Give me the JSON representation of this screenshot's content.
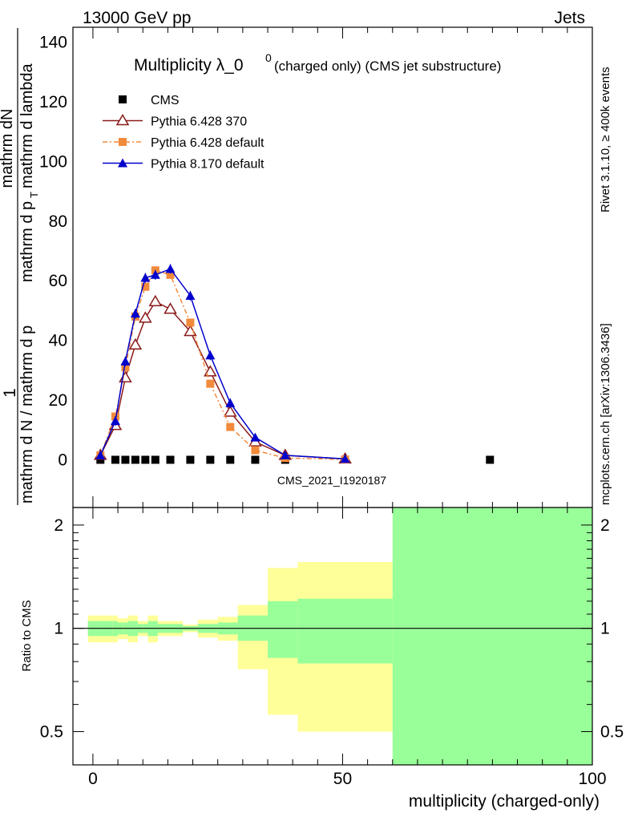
{
  "header": {
    "left": "13000 GeV pp",
    "right": "Jets"
  },
  "side_labels": {
    "rivet": "Rivet 3.1.10, ≥ 400k events",
    "mcplots": "mcplots.cern.ch [arXiv:1306.3436]"
  },
  "chart_data": [
    {
      "type": "line",
      "title": "Multiplicity λ_0",
      "title_sup": "0",
      "title_suffix": "(charged only) (CMS jet substructure)",
      "watermark": "CMS_2021_I1920187",
      "ylabel": {
        "numerator_a": "1",
        "numerator_b": "mathrm dN",
        "denominator_a": "mathrm d N / mathrm d p",
        "denominator_b": "mathrm d p",
        "denominator_c": "mathrm d lambda",
        "denominator_d": "mathrm d",
        "sub_t": "T"
      },
      "xlim": [
        -4,
        100
      ],
      "ylim": [
        -16,
        145
      ],
      "yticks": [
        0,
        20,
        40,
        60,
        80,
        100,
        120,
        140
      ],
      "legend_placement": "top-left",
      "series": [
        {
          "name": "CMS",
          "marker": "square",
          "color": "#000000",
          "x": [
            1.5,
            4.5,
            6.5,
            8.5,
            10.5,
            12.5,
            15.5,
            19.5,
            23.5,
            27.5,
            32.5,
            38.5,
            79.5
          ],
          "y": [
            0,
            0,
            0,
            0,
            0,
            0,
            0,
            0,
            0,
            0,
            0,
            0,
            0
          ]
        },
        {
          "name": "Pythia 6.428 370",
          "marker": "open-triangle",
          "color": "#8b1a1a",
          "x": [
            1.5,
            4.5,
            6.5,
            8.5,
            10.5,
            12.5,
            15.5,
            19.5,
            23.5,
            27.5,
            32.5,
            38.5,
            50.5
          ],
          "y": [
            1.5,
            11.5,
            27.5,
            38.5,
            47.5,
            53,
            50.5,
            43,
            29.5,
            16,
            6,
            1.5,
            0.3
          ]
        },
        {
          "name": "Pythia 6.428 default",
          "marker": "square",
          "color": "#f28a3c",
          "x": [
            1.5,
            4.5,
            6.5,
            8.5,
            10.5,
            12.5,
            15.5,
            19.5,
            23.5,
            27.5,
            32.5,
            38.5,
            50.5
          ],
          "y": [
            1.5,
            14.5,
            31,
            48,
            58,
            63.5,
            62,
            46,
            25.5,
            11,
            3.2,
            0.6,
            0.1
          ]
        },
        {
          "name": "Pythia 8.170 default",
          "marker": "triangle",
          "color": "#0000cc",
          "x": [
            1.5,
            4.5,
            6.5,
            8.5,
            10.5,
            12.5,
            15.5,
            19.5,
            23.5,
            27.5,
            32.5,
            38.5,
            50.5
          ],
          "y": [
            1.5,
            13,
            33,
            49,
            61,
            62,
            64,
            55,
            35,
            19,
            7.5,
            1.5,
            0.3
          ]
        }
      ]
    },
    {
      "type": "area",
      "ylabel": "Ratio to CMS",
      "xlabel": "multiplicity (charged-only)",
      "xlim": [
        -4,
        100
      ],
      "ylim": [
        0.4,
        2.25
      ],
      "yticks": [
        0.5,
        1,
        2
      ],
      "xticks": [
        0,
        50,
        100
      ],
      "reference_line": 1,
      "bins": [
        {
          "x0": -1,
          "x1": 4,
          "inner": [
            0.95,
            1.05
          ],
          "outer": [
            0.91,
            1.09
          ]
        },
        {
          "x0": 4,
          "x1": 5,
          "inner": [
            0.95,
            1.05
          ],
          "outer": [
            0.91,
            1.09
          ]
        },
        {
          "x0": 5,
          "x1": 6,
          "inner": [
            0.96,
            1.04
          ],
          "outer": [
            0.93,
            1.07
          ]
        },
        {
          "x0": 6,
          "x1": 7,
          "inner": [
            0.96,
            1.04
          ],
          "outer": [
            0.93,
            1.07
          ]
        },
        {
          "x0": 7,
          "x1": 9,
          "inner": [
            0.95,
            1.05
          ],
          "outer": [
            0.91,
            1.09
          ]
        },
        {
          "x0": 9,
          "x1": 10,
          "inner": [
            0.97,
            1.03
          ],
          "outer": [
            0.95,
            1.05
          ]
        },
        {
          "x0": 10,
          "x1": 11,
          "inner": [
            0.97,
            1.03
          ],
          "outer": [
            0.95,
            1.05
          ]
        },
        {
          "x0": 11,
          "x1": 13,
          "inner": [
            0.95,
            1.05
          ],
          "outer": [
            0.91,
            1.09
          ]
        },
        {
          "x0": 13,
          "x1": 15,
          "inner": [
            0.97,
            1.03
          ],
          "outer": [
            0.95,
            1.05
          ]
        },
        {
          "x0": 15,
          "x1": 18,
          "inner": [
            0.97,
            1.03
          ],
          "outer": [
            0.95,
            1.05
          ]
        },
        {
          "x0": 18,
          "x1": 21,
          "inner": [
            0.985,
            1.015
          ],
          "outer": [
            0.975,
            1.025
          ]
        },
        {
          "x0": 21,
          "x1": 25,
          "inner": [
            0.97,
            1.03
          ],
          "outer": [
            0.94,
            1.06
          ]
        },
        {
          "x0": 25,
          "x1": 29,
          "inner": [
            0.96,
            1.04
          ],
          "outer": [
            0.92,
            1.08
          ]
        },
        {
          "x0": 29,
          "x1": 35,
          "inner": [
            0.92,
            1.09
          ],
          "outer": [
            0.76,
            1.17
          ]
        },
        {
          "x0": 35,
          "x1": 41,
          "inner": [
            0.82,
            1.2
          ],
          "outer": [
            0.56,
            1.5
          ]
        },
        {
          "x0": 41,
          "x1": 60,
          "inner": [
            0.79,
            1.22
          ],
          "outer": [
            0.5,
            1.56
          ]
        },
        {
          "x0": 60,
          "x1": 100,
          "inner": [
            0.4,
            2.25
          ],
          "outer": [
            0.4,
            2.25
          ]
        }
      ]
    }
  ]
}
